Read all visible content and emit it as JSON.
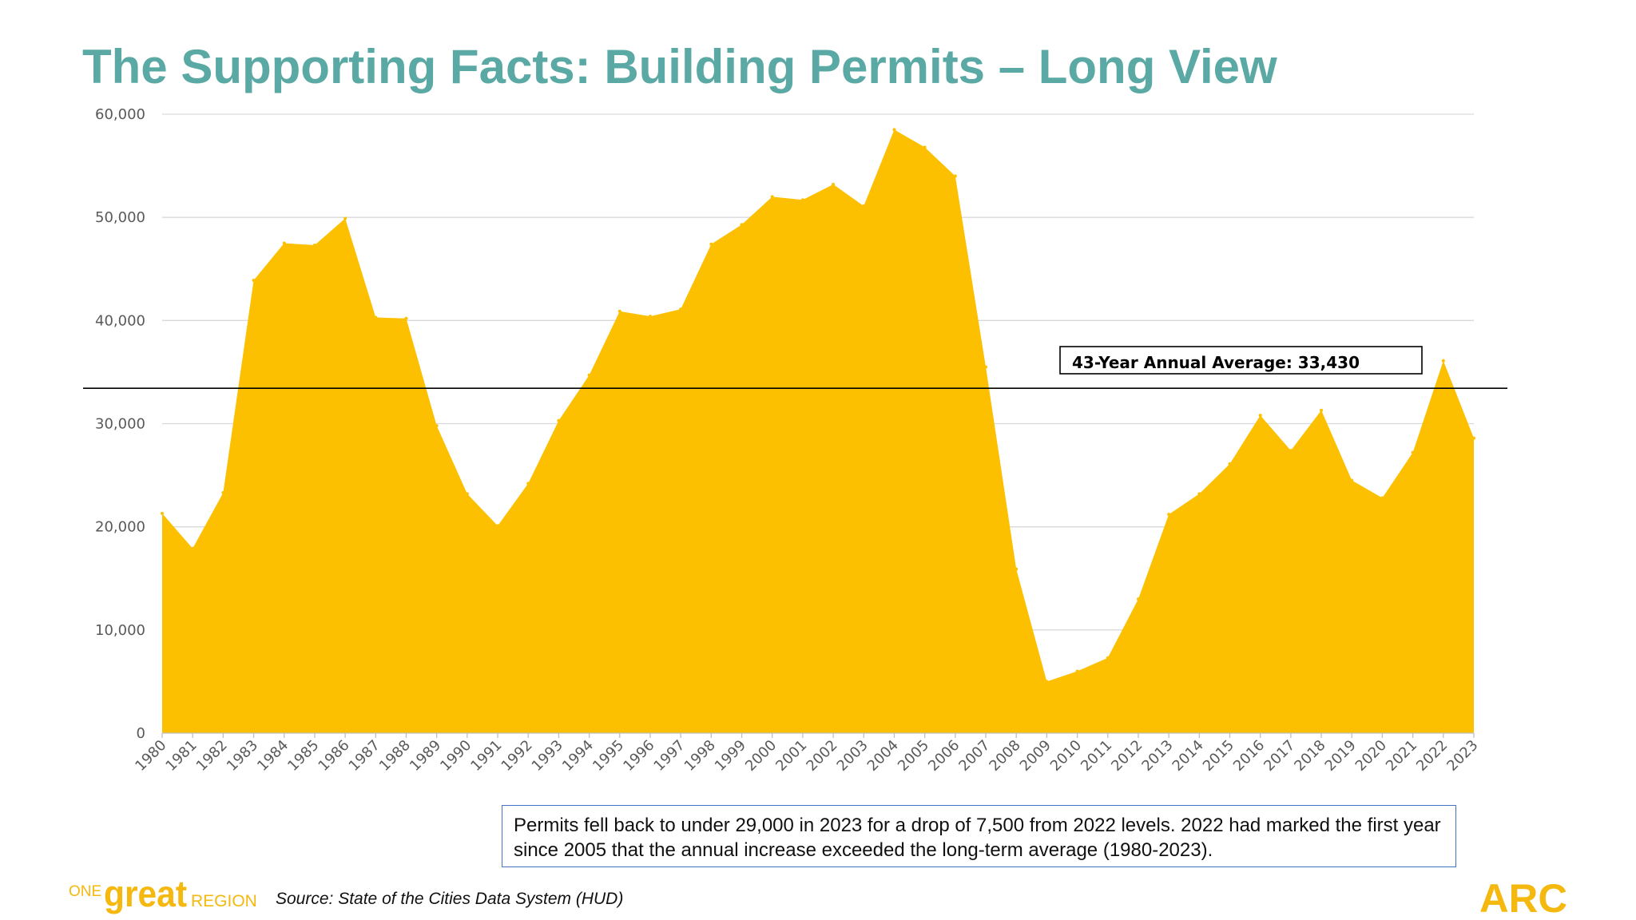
{
  "slide_title": "The Supporting Facts: Building Permits – Long View",
  "chart_data": {
    "type": "area",
    "title": "",
    "xlabel": "",
    "ylabel": "",
    "ylim": [
      0,
      60000
    ],
    "yticks": [
      0,
      10000,
      20000,
      30000,
      40000,
      50000,
      60000
    ],
    "ytick_labels": [
      "0",
      "10,000",
      "20,000",
      "30,000",
      "40,000",
      "50,000",
      "60,000"
    ],
    "grid": true,
    "categories": [
      "1980",
      "1981",
      "1982",
      "1983",
      "1984",
      "1985",
      "1986",
      "1987",
      "1988",
      "1989",
      "1990",
      "1991",
      "1992",
      "1993",
      "1994",
      "1995",
      "1996",
      "1997",
      "1998",
      "1999",
      "2000",
      "2001",
      "2002",
      "2003",
      "2004",
      "2005",
      "2006",
      "2007",
      "2008",
      "2009",
      "2010",
      "2011",
      "2012",
      "2013",
      "2014",
      "2015",
      "2016",
      "2017",
      "2018",
      "2019",
      "2020",
      "2021",
      "2022",
      "2023"
    ],
    "series": [
      {
        "name": "Building Permits",
        "color": "#fcc000",
        "values": [
          21300,
          17900,
          23300,
          43900,
          47500,
          47300,
          49900,
          40300,
          40200,
          29800,
          23200,
          20100,
          24200,
          30300,
          34700,
          40900,
          40400,
          41100,
          47400,
          49300,
          52000,
          51700,
          53200,
          51100,
          58500,
          56800,
          54000,
          35500,
          15900,
          5000,
          6000,
          7300,
          13000,
          21200,
          23200,
          26100,
          30800,
          27400,
          31300,
          24500,
          22800,
          27200,
          36100,
          28600
        ]
      }
    ],
    "reference_line": {
      "value": 33430,
      "label": "43-Year Annual Average: 33,430",
      "color": "#000000"
    }
  },
  "note_text": "Permits fell back to under 29,000 in 2023 for a drop of 7,500 from 2022 levels. 2022 had marked the first year since 2005 that the annual increase exceeded the long-term average (1980-2023).",
  "source_text": "Source: State of the Cities Data System (HUD)",
  "logos": {
    "one_great_region": {
      "word_one": "ONE",
      "word_great": "great",
      "word_region": "REGION",
      "color": "#f5b80f"
    },
    "arc": {
      "text": "ARC",
      "color": "#f5b80f"
    }
  }
}
